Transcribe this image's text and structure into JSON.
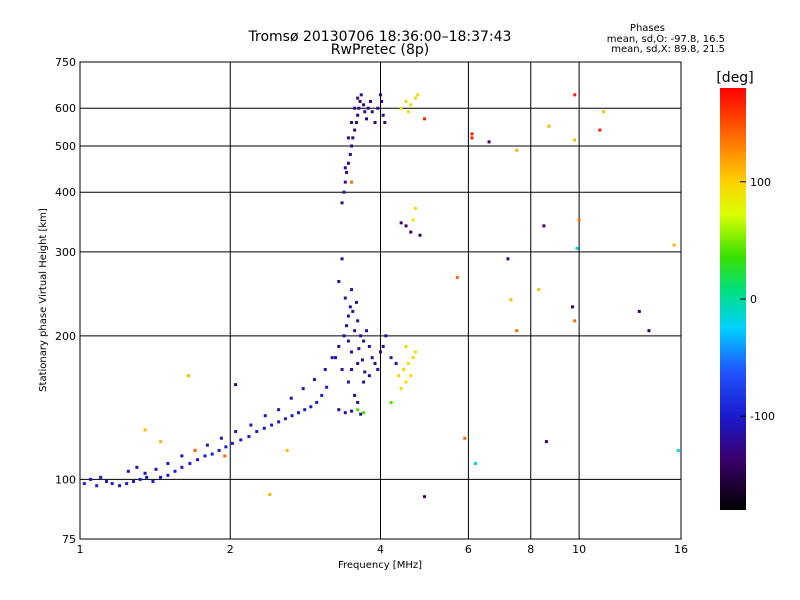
{
  "chart_data": {
    "type": "scatter",
    "title": "Tromsø 20130706 18:36:00–18:37:43",
    "subtitle": "RwPretec (8p)",
    "xlabel": "Frequency [MHz]",
    "ylabel": "Stationary phase Virtual Height [km]",
    "x_scale": "log",
    "y_scale": "log",
    "xlim": [
      1,
      16
    ],
    "ylim": [
      75,
      750
    ],
    "x_ticks": [
      1,
      2,
      4,
      6,
      8,
      10,
      16
    ],
    "y_ticks": [
      75,
      100,
      200,
      300,
      400,
      500,
      600,
      750
    ],
    "x_gridlines": [
      1,
      2,
      4,
      6,
      8,
      10,
      16
    ],
    "y_gridlines": [
      75,
      100,
      200,
      300,
      400,
      500,
      600,
      750
    ],
    "grid": true,
    "stats_title": "Phases",
    "stats_lines": [
      "mean, sd,O: -97.8, 16.5",
      "mean, sd,X: 89.8, 21.5"
    ],
    "colorbar": {
      "label": "[deg]",
      "min": -180,
      "max": 180,
      "ticks": [
        100,
        0,
        -100
      ]
    },
    "marker_color_default": "#2838d8",
    "clusters": [
      {
        "phase": -100,
        "points": [
          [
            1.02,
            98
          ],
          [
            1.05,
            100
          ],
          [
            1.08,
            97
          ],
          [
            1.1,
            101
          ],
          [
            1.13,
            99
          ],
          [
            1.16,
            98
          ],
          [
            1.2,
            97
          ],
          [
            1.24,
            98
          ],
          [
            1.28,
            99
          ],
          [
            1.32,
            100
          ],
          [
            1.36,
            101
          ],
          [
            1.4,
            99
          ],
          [
            1.45,
            101
          ],
          [
            1.5,
            102
          ],
          [
            1.55,
            104
          ],
          [
            1.6,
            106
          ],
          [
            1.66,
            108
          ],
          [
            1.72,
            110
          ],
          [
            1.78,
            112
          ],
          [
            1.84,
            113
          ],
          [
            1.9,
            115
          ],
          [
            1.96,
            117
          ],
          [
            2.02,
            119
          ],
          [
            2.1,
            121
          ],
          [
            2.18,
            123
          ],
          [
            2.26,
            126
          ],
          [
            2.34,
            128
          ],
          [
            2.42,
            130
          ],
          [
            2.5,
            132
          ],
          [
            2.58,
            134
          ],
          [
            2.66,
            136
          ],
          [
            2.74,
            138
          ],
          [
            2.82,
            140
          ],
          [
            2.9,
            142
          ],
          [
            2.98,
            145
          ],
          [
            3.05,
            150
          ],
          [
            3.12,
            156
          ]
        ]
      },
      {
        "phase": -110,
        "points": [
          [
            1.25,
            104
          ],
          [
            1.3,
            106
          ],
          [
            1.35,
            103
          ],
          [
            1.42,
            105
          ],
          [
            1.5,
            108
          ],
          [
            1.6,
            112
          ],
          [
            1.7,
            115
          ],
          [
            1.8,
            118
          ],
          [
            1.92,
            122
          ],
          [
            2.05,
            126
          ],
          [
            2.2,
            130
          ],
          [
            2.35,
            136
          ],
          [
            2.5,
            140
          ],
          [
            2.65,
            148
          ],
          [
            2.8,
            155
          ],
          [
            2.95,
            162
          ],
          [
            3.1,
            170
          ],
          [
            3.2,
            180
          ]
        ]
      },
      {
        "phase": -120,
        "points": [
          [
            3.3,
            260
          ],
          [
            3.35,
            290
          ],
          [
            3.4,
            240
          ],
          [
            3.45,
            220
          ],
          [
            3.5,
            250
          ],
          [
            3.38,
            200
          ],
          [
            3.42,
            210
          ],
          [
            3.48,
            230
          ],
          [
            3.55,
            205
          ],
          [
            3.6,
            215
          ],
          [
            3.65,
            200
          ],
          [
            3.3,
            190
          ],
          [
            3.25,
            180
          ],
          [
            3.5,
            185
          ],
          [
            3.7,
            195
          ],
          [
            3.75,
            205
          ],
          [
            3.8,
            190
          ],
          [
            3.85,
            180
          ],
          [
            3.9,
            175
          ],
          [
            3.95,
            170
          ],
          [
            4.0,
            185
          ],
          [
            4.05,
            190
          ],
          [
            3.35,
            170
          ],
          [
            3.45,
            160
          ],
          [
            3.55,
            150
          ],
          [
            3.6,
            145
          ],
          [
            3.7,
            160
          ],
          [
            3.8,
            165
          ],
          [
            3.3,
            140
          ],
          [
            3.4,
            138
          ],
          [
            3.5,
            139
          ],
          [
            3.65,
            137
          ],
          [
            3.5,
            170
          ],
          [
            3.6,
            175
          ],
          [
            3.45,
            195
          ],
          [
            3.52,
            225
          ],
          [
            3.58,
            235
          ],
          [
            3.62,
            188
          ],
          [
            3.68,
            178
          ],
          [
            3.72,
            168
          ],
          [
            4.1,
            200
          ],
          [
            4.2,
            180
          ],
          [
            4.3,
            175
          ]
        ]
      },
      {
        "phase": -125,
        "points": [
          [
            3.35,
            380
          ],
          [
            3.38,
            400
          ],
          [
            3.4,
            420
          ],
          [
            3.42,
            440
          ],
          [
            3.45,
            460
          ],
          [
            3.48,
            480
          ],
          [
            3.5,
            500
          ],
          [
            3.52,
            520
          ],
          [
            3.55,
            540
          ],
          [
            3.58,
            560
          ],
          [
            3.6,
            580
          ],
          [
            3.62,
            600
          ],
          [
            3.64,
            620
          ],
          [
            3.66,
            640
          ],
          [
            3.7,
            610
          ],
          [
            3.72,
            590
          ],
          [
            3.75,
            570
          ],
          [
            3.78,
            600
          ],
          [
            3.82,
            620
          ],
          [
            3.85,
            590
          ],
          [
            3.9,
            560
          ],
          [
            3.95,
            600
          ],
          [
            4.0,
            640
          ],
          [
            4.02,
            620
          ],
          [
            4.05,
            580
          ],
          [
            4.08,
            560
          ],
          [
            3.5,
            560
          ],
          [
            3.55,
            600
          ],
          [
            3.6,
            630
          ],
          [
            3.45,
            520
          ],
          [
            3.4,
            450
          ]
        ]
      },
      {
        "phase": 95,
        "points": [
          [
            4.4,
            600
          ],
          [
            4.5,
            620
          ],
          [
            4.6,
            610
          ],
          [
            4.7,
            630
          ],
          [
            4.75,
            640
          ],
          [
            4.55,
            590
          ],
          [
            4.65,
            350
          ],
          [
            4.7,
            370
          ],
          [
            4.6,
            165
          ],
          [
            4.5,
            160
          ],
          [
            4.45,
            170
          ],
          [
            4.55,
            175
          ],
          [
            4.65,
            180
          ],
          [
            4.7,
            185
          ],
          [
            4.4,
            155
          ],
          [
            4.35,
            165
          ],
          [
            4.5,
            190
          ]
        ]
      },
      {
        "phase": 40,
        "points": [
          [
            3.6,
            140
          ],
          [
            3.7,
            138
          ],
          [
            4.2,
            145
          ]
        ]
      },
      {
        "phase": 170,
        "points": [
          [
            6.1,
            530
          ],
          [
            6.1,
            520
          ],
          [
            11.0,
            540
          ],
          [
            9.8,
            640
          ],
          [
            4.9,
            570
          ]
        ]
      },
      {
        "phase": 140,
        "points": [
          [
            5.7,
            265
          ],
          [
            5.9,
            122
          ],
          [
            9.8,
            215
          ],
          [
            10.0,
            350
          ],
          [
            7.5,
            205
          ],
          [
            3.5,
            420
          ],
          [
            1.7,
            115
          ],
          [
            1.95,
            112
          ]
        ]
      },
      {
        "phase": 110,
        "points": [
          [
            1.35,
            127
          ],
          [
            1.45,
            120
          ],
          [
            1.65,
            165
          ],
          [
            2.4,
            93
          ],
          [
            2.6,
            115
          ],
          [
            7.5,
            490
          ],
          [
            8.7,
            550
          ],
          [
            11.2,
            590
          ],
          [
            9.8,
            515
          ],
          [
            15.5,
            310
          ],
          [
            7.3,
            238
          ],
          [
            8.3,
            250
          ]
        ]
      },
      {
        "phase": -20,
        "points": [
          [
            6.2,
            108
          ],
          [
            9.9,
            305
          ],
          [
            15.8,
            115
          ]
        ]
      },
      {
        "phase": -135,
        "points": [
          [
            2.05,
            158
          ],
          [
            6.6,
            510
          ],
          [
            7.2,
            290
          ],
          [
            8.5,
            340
          ],
          [
            8.6,
            120
          ],
          [
            9.7,
            230
          ],
          [
            13.8,
            205
          ],
          [
            13.2,
            225
          ],
          [
            4.9,
            92
          ],
          [
            4.8,
            325
          ],
          [
            4.4,
            345
          ],
          [
            4.5,
            340
          ],
          [
            4.6,
            330
          ]
        ]
      }
    ]
  }
}
